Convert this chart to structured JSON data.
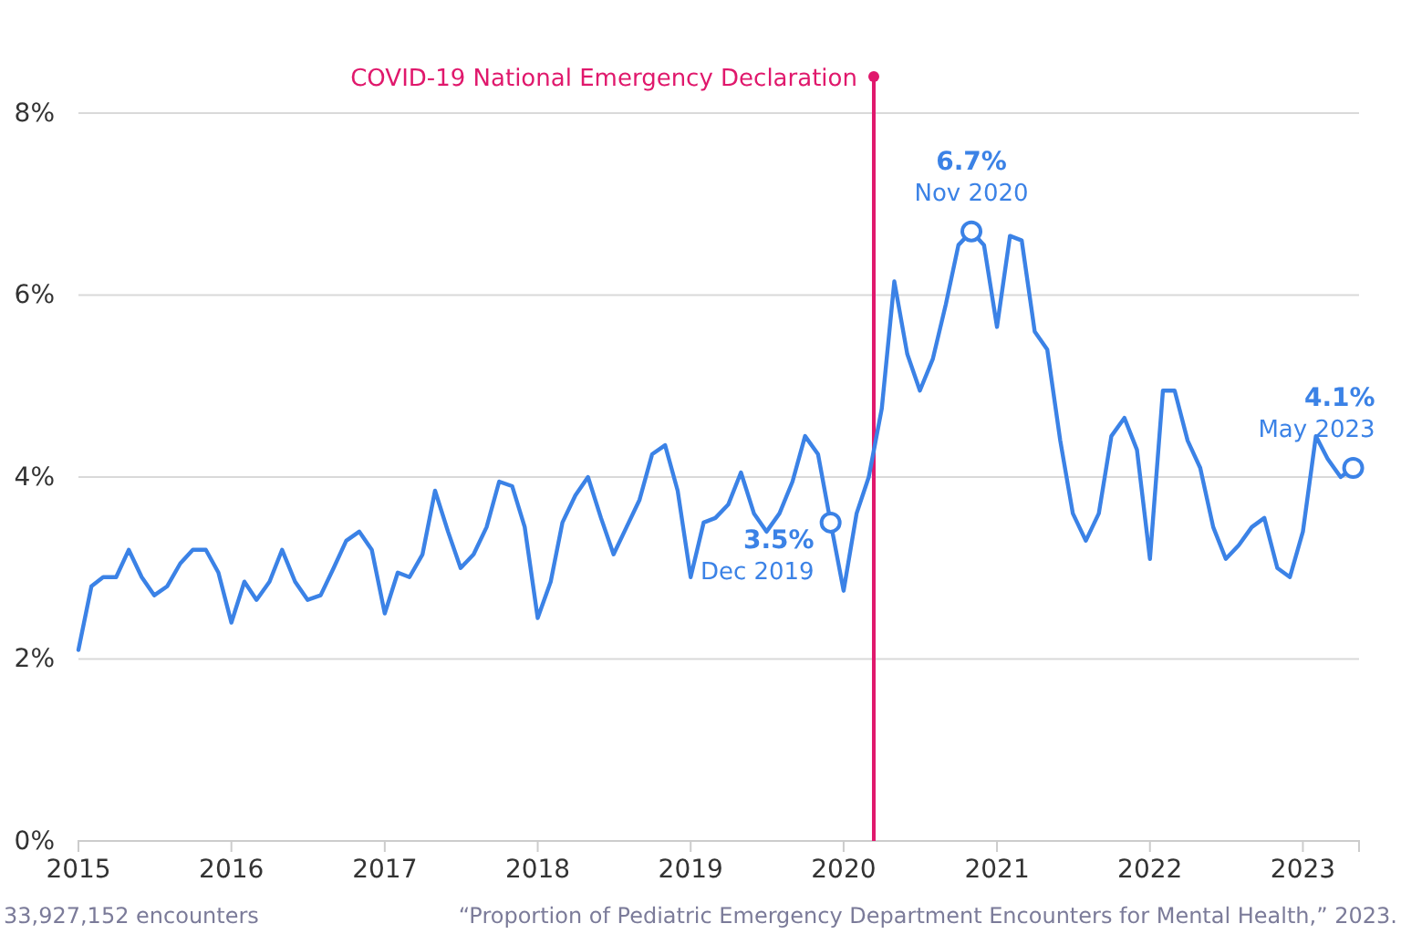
{
  "chart_data": {
    "type": "line",
    "x": [
      "2015-01",
      "2015-02",
      "2015-03",
      "2015-04",
      "2015-05",
      "2015-06",
      "2015-07",
      "2015-08",
      "2015-09",
      "2015-10",
      "2015-11",
      "2015-12",
      "2016-01",
      "2016-02",
      "2016-03",
      "2016-04",
      "2016-05",
      "2016-06",
      "2016-07",
      "2016-08",
      "2016-09",
      "2016-10",
      "2016-11",
      "2016-12",
      "2017-01",
      "2017-02",
      "2017-03",
      "2017-04",
      "2017-05",
      "2017-06",
      "2017-07",
      "2017-08",
      "2017-09",
      "2017-10",
      "2017-11",
      "2017-12",
      "2018-01",
      "2018-02",
      "2018-03",
      "2018-04",
      "2018-05",
      "2018-06",
      "2018-07",
      "2018-08",
      "2018-09",
      "2018-10",
      "2018-11",
      "2018-12",
      "2019-01",
      "2019-02",
      "2019-03",
      "2019-04",
      "2019-05",
      "2019-06",
      "2019-07",
      "2019-08",
      "2019-09",
      "2019-10",
      "2019-11",
      "2019-12",
      "2020-01",
      "2020-02",
      "2020-03",
      "2020-04",
      "2020-05",
      "2020-06",
      "2020-07",
      "2020-08",
      "2020-09",
      "2020-10",
      "2020-11",
      "2020-12",
      "2021-01",
      "2021-02",
      "2021-03",
      "2021-04",
      "2021-05",
      "2021-06",
      "2021-07",
      "2021-08",
      "2021-09",
      "2021-10",
      "2021-11",
      "2021-12",
      "2022-01",
      "2022-02",
      "2022-03",
      "2022-04",
      "2022-05",
      "2022-06",
      "2022-07",
      "2022-08",
      "2022-09",
      "2022-10",
      "2022-11",
      "2022-12",
      "2023-01",
      "2023-02",
      "2023-03",
      "2023-04",
      "2023-05"
    ],
    "series": [
      {
        "color": "#3b82e6",
        "values": [
          2.1,
          2.8,
          2.9,
          2.9,
          3.2,
          2.9,
          2.7,
          2.8,
          3.05,
          3.2,
          3.2,
          2.95,
          2.4,
          2.85,
          2.65,
          2.85,
          3.2,
          2.85,
          2.65,
          2.7,
          3.0,
          3.3,
          3.4,
          3.2,
          2.5,
          2.95,
          2.9,
          3.15,
          3.85,
          3.4,
          3.0,
          3.15,
          3.45,
          3.95,
          3.9,
          3.45,
          2.45,
          2.85,
          3.5,
          3.8,
          4.0,
          3.55,
          3.15,
          3.45,
          3.75,
          4.25,
          4.35,
          3.85,
          2.9,
          3.5,
          3.55,
          3.7,
          4.05,
          3.6,
          3.4,
          3.6,
          3.95,
          4.45,
          4.25,
          3.5,
          2.75,
          3.6,
          4.0,
          4.75,
          6.15,
          5.35,
          4.95,
          5.3,
          5.9,
          6.55,
          6.7,
          6.55,
          5.65,
          6.65,
          6.6,
          5.6,
          5.4,
          4.4,
          3.6,
          3.3,
          3.6,
          4.45,
          4.65,
          4.3,
          3.1,
          4.95,
          4.95,
          4.4,
          4.1,
          3.45,
          3.1,
          3.25,
          3.45,
          3.55,
          3.0,
          2.9,
          3.4,
          4.45,
          4.2,
          4.0,
          4.1
        ]
      }
    ],
    "xlim": [
      "2015-01",
      "2023-05-15"
    ],
    "xticks": [
      "2015",
      "2016",
      "2017",
      "2018",
      "2019",
      "2020",
      "2021",
      "2022",
      "2023"
    ],
    "ylim": [
      0,
      8
    ],
    "yticks": [
      {
        "value": 0,
        "label": "0%"
      },
      {
        "value": 2,
        "label": "2%"
      },
      {
        "value": 4,
        "label": "4%"
      },
      {
        "value": 6,
        "label": "6%"
      },
      {
        "value": 8,
        "label": "8%"
      }
    ],
    "grid": "y",
    "marker": "none",
    "line_style": "solid",
    "ref_lines": [
      {
        "axis": "x",
        "value": "2020-03-13",
        "label": "COVID-19 National Emergency Declaration",
        "color": "#e0186c"
      }
    ],
    "annotations": [
      {
        "text": "3.5%\nDec 2019",
        "x": "2019-12",
        "y": 3.5
      },
      {
        "text": "6.7%\nNov 2020",
        "x": "2020-11",
        "y": 6.7
      },
      {
        "text": "4.1%\nMay 2023",
        "x": "2023-05",
        "y": 4.1
      },
      "33,927,152 encounters",
      "“Proportion of Pediatric Emergency Department Encounters for Mental Health,” 2023."
    ]
  }
}
